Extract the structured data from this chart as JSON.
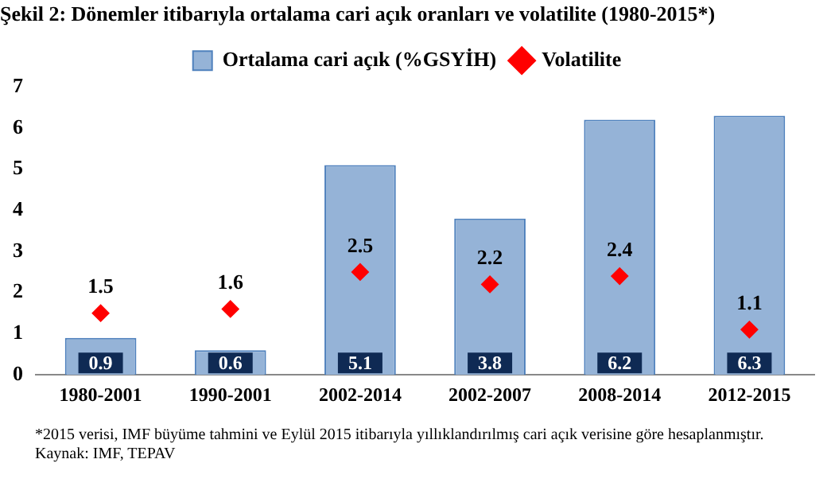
{
  "chart_data": {
    "type": "bar",
    "title": "Şekil 2: Dönemler itibarıyla ortalama cari açık oranları ve volatilite (1980-2015*)",
    "categories": [
      "1980-2001",
      "1990-2001",
      "2002-2014",
      "2002-2007",
      "2008-2014",
      "2012-2015"
    ],
    "series": [
      {
        "name": "Ortalama cari açık (%GSYİH)",
        "color": "#95b3d7",
        "values": [
          0.9,
          0.6,
          5.1,
          3.8,
          6.2,
          6.3
        ]
      },
      {
        "name": "Volatilite",
        "type": "scatter",
        "color": "#ff0000",
        "marker": "diamond",
        "x": [
          "1980-2001",
          "1990-2001",
          "2002-2014",
          "2002-2007",
          "2008-2014",
          "2012-2015"
        ],
        "values": [
          1.5,
          1.6,
          2.5,
          2.2,
          2.4,
          1.1
        ]
      }
    ],
    "ylim": [
      0,
      7
    ],
    "yticks": [
      0,
      1,
      2,
      3,
      4,
      5,
      6,
      7
    ],
    "grid": false,
    "legend": "top",
    "data_labels": true,
    "annotations": [
      "*2015 verisi, IMF büyüme tahmini ve Eylül 2015 itibarıyla yıllıklandırılmış cari açık verisine göre hesaplanmıştır.",
      "Kaynak: IMF, TEPAV"
    ]
  }
}
